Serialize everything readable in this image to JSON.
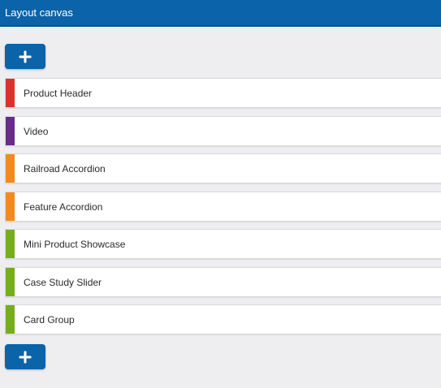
{
  "header": {
    "title": "Layout canvas"
  },
  "actions": {
    "add_symbol": "+",
    "add_icon": "plus-icon"
  },
  "colors": {
    "header": "#0b63a9",
    "button": "#0b63a9",
    "red": "#d9342b",
    "purple": "#6a2a8a",
    "orange": "#f38a1f",
    "green": "#76ad1c"
  },
  "modules": [
    {
      "label": "Product Header",
      "color": "#d9342b"
    },
    {
      "label": "Video",
      "color": "#6a2a8a"
    },
    {
      "label": "Railroad Accordion",
      "color": "#f38a1f"
    },
    {
      "label": "Feature Accordion",
      "color": "#f38a1f"
    },
    {
      "label": "Mini Product Showcase",
      "color": "#76ad1c"
    },
    {
      "label": "Case Study Slider",
      "color": "#76ad1c"
    },
    {
      "label": "Card Group",
      "color": "#76ad1c"
    }
  ]
}
